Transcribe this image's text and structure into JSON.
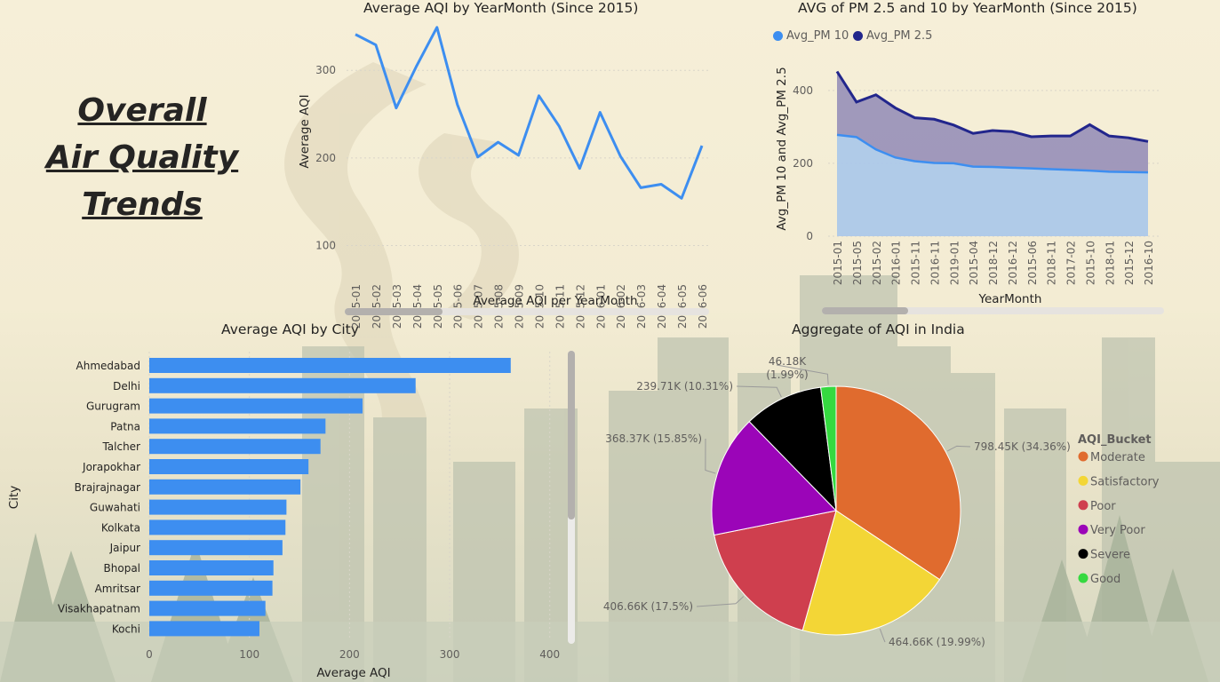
{
  "title_lines": [
    "Overall ",
    "Air Quality ",
    "Trends"
  ],
  "colors": {
    "aqi_line": "#3d8ef0",
    "bar": "#3d8ef0",
    "pm10": "#3d8ef0",
    "pm25": "#22268c",
    "pm10_fill": "#a9c7ea",
    "pm25_fill": "#9b93b9"
  },
  "chart_data": [
    {
      "type": "line",
      "title": "Average AQI by YearMonth (Since 2015)",
      "xlabel": "Average AQI per YearMonth",
      "ylabel": "Average AQI",
      "categories": [
        "2015-01",
        "2015-02",
        "2015-03",
        "2015-04",
        "2015-05",
        "2015-06",
        "2015-07",
        "2015-08",
        "2015-09",
        "2015-10",
        "2015-11",
        "2015-12",
        "2016-01",
        "2016-02",
        "2016-03",
        "2016-04",
        "2016-05",
        "2016-06"
      ],
      "values": [
        341,
        329,
        257,
        305,
        349,
        261,
        201,
        218,
        203,
        271,
        236,
        188,
        252,
        202,
        166,
        170,
        154,
        214
      ],
      "yticks": [
        100,
        200,
        300
      ],
      "ylim": [
        60,
        360
      ],
      "grid": true
    },
    {
      "type": "area",
      "title": "AVG of PM 2.5 and 10 by YearMonth (Since 2015)",
      "xlabel": "YearMonth",
      "ylabel": "Avg_PM 10 and Avg_PM 2.5",
      "categories": [
        "2015-01",
        "2015-05",
        "2015-02",
        "2016-01",
        "2015-11",
        "2016-11",
        "2019-01",
        "2015-04",
        "2018-12",
        "2016-12",
        "2015-06",
        "2018-11",
        "2017-02",
        "2015-10",
        "2018-01",
        "2015-12",
        "2016-10"
      ],
      "series": [
        {
          "name": "Avg_PM 10",
          "values": [
            278,
            272,
            238,
            216,
            206,
            201,
            200,
            191,
            190,
            188,
            186,
            184,
            182,
            180,
            177,
            176,
            175
          ]
        },
        {
          "name": "Avg_PM 2.5",
          "values": [
            452,
            368,
            388,
            352,
            325,
            321,
            305,
            282,
            290,
            287,
            273,
            275,
            275,
            306,
            275,
            270,
            260
          ]
        }
      ],
      "yticks": [
        0,
        200,
        400
      ],
      "ylim": [
        0,
        480
      ],
      "legend_position": "top-left",
      "grid": true
    },
    {
      "type": "bar",
      "orientation": "horizontal",
      "title": "Average AQI by City",
      "xlabel": "Average AQI",
      "ylabel": "City",
      "categories": [
        "Ahmedabad",
        "Delhi",
        "Gurugram",
        "Patna",
        "Talcher",
        "Jorapokhar",
        "Brajrajnagar",
        "Guwahati",
        "Kolkata",
        "Jaipur",
        "Bhopal",
        "Amritsar",
        "Visakhapatnam",
        "Kochi"
      ],
      "values": [
        361,
        266,
        213,
        176,
        171,
        159,
        151,
        137,
        136,
        133,
        124,
        123,
        116,
        110
      ],
      "xticks": [
        0,
        100,
        200,
        300,
        400
      ],
      "xlim": [
        0,
        410
      ],
      "grid": true
    },
    {
      "type": "pie",
      "title": "Aggregate of AQI in India",
      "legend_title": "AQI_Bucket",
      "legend_position": "right",
      "slices": [
        {
          "label": "Moderate",
          "value": 798.45,
          "display": "798.45K (34.36%)",
          "color": "#e06b2e"
        },
        {
          "label": "Satisfactory",
          "value": 464.66,
          "display": "464.66K (19.99%)",
          "color": "#f3d636"
        },
        {
          "label": "Poor",
          "value": 406.66,
          "display": "406.66K (17.5%)",
          "color": "#cf3f4e"
        },
        {
          "label": "Very Poor",
          "value": 368.37,
          "display": "368.37K (15.85%)",
          "color": "#9b05b8"
        },
        {
          "label": "Severe",
          "value": 239.71,
          "display": "239.71K (10.31%)",
          "color": "#000000"
        },
        {
          "label": "Good",
          "value": 46.18,
          "display": "46.18K (1.99%)",
          "color": "#35d940"
        }
      ]
    }
  ]
}
